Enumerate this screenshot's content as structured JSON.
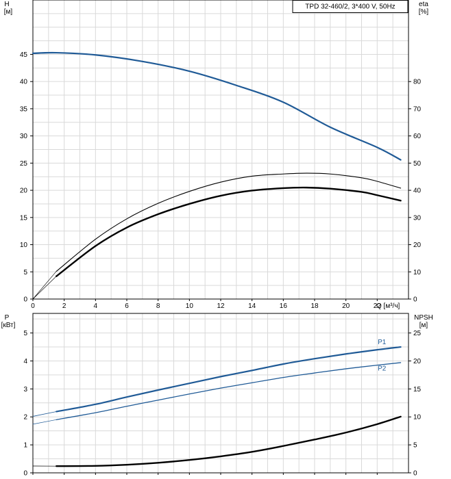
{
  "chart_data": [
    {
      "type": "line",
      "legend": "TPD 32-460/2, 3*400 V, 50Hz",
      "x_axis": {
        "label": "Q [м³/ч]",
        "ticks": [
          "0",
          "2",
          "4",
          "6",
          "8",
          "10",
          "12",
          "14",
          "16",
          "18",
          "20",
          "22"
        ],
        "range": [
          0,
          24
        ]
      },
      "y_left": {
        "label_line1": "H",
        "label_line2": "[м]",
        "ticks": [
          "0",
          "5",
          "10",
          "15",
          "20",
          "25",
          "30",
          "35",
          "40",
          "45"
        ],
        "range": [
          0,
          55
        ]
      },
      "y_right": {
        "label_line1": "eta",
        "label_line2": "[%]",
        "ticks": [
          "0",
          "10",
          "20",
          "30",
          "40",
          "50",
          "60",
          "70",
          "80"
        ],
        "range": [
          0,
          110
        ]
      },
      "grid": true,
      "series": [
        {
          "axis": "left",
          "color": "#1f5a96",
          "width": 2.2,
          "x": [
            0,
            1.5,
            4,
            7,
            10,
            13,
            16,
            19,
            22,
            23.5
          ],
          "y": [
            45.2,
            45.3,
            44.9,
            43.7,
            41.9,
            39.3,
            36.2,
            31.6,
            27.9,
            25.6
          ]
        },
        {
          "axis": "left",
          "color": "#1f5a96",
          "width": 0.8,
          "x": [
            0,
            1.5
          ],
          "y": [
            45.1,
            45.3
          ]
        },
        {
          "axis": "right",
          "color": "#000000",
          "width": 1.1,
          "x": [
            1.5,
            4,
            6,
            8,
            10,
            12,
            14,
            16,
            17.5,
            19,
            21,
            22,
            23.5
          ],
          "y": [
            10.2,
            22,
            29.5,
            35.2,
            39.6,
            43,
            45.2,
            46,
            46.3,
            46,
            44.6,
            43.3,
            40.8
          ]
        },
        {
          "axis": "right",
          "color": "#000000",
          "width": 0.6,
          "x": [
            0,
            1.5
          ],
          "y": [
            0,
            10.2
          ]
        },
        {
          "axis": "right",
          "color": "#000000",
          "width": 2.4,
          "x": [
            1.5,
            4,
            6,
            8,
            10,
            12,
            14,
            16,
            17.5,
            19,
            21,
            22,
            23.5
          ],
          "y": [
            8.4,
            19.5,
            26.3,
            31.2,
            35,
            38,
            39.9,
            40.8,
            41,
            40.6,
            39.4,
            38.2,
            36.2
          ]
        },
        {
          "axis": "right",
          "color": "#000000",
          "width": 0.6,
          "x": [
            0,
            1.5
          ],
          "y": [
            0,
            8.4
          ]
        }
      ]
    },
    {
      "type": "line",
      "x_axis": {
        "ticks": [
          "0",
          "2",
          "4",
          "6",
          "8",
          "10",
          "12",
          "14",
          "16",
          "18",
          "20",
          "22"
        ],
        "range": [
          0,
          24
        ]
      },
      "y_left": {
        "label_line1": "P",
        "label_line2": "[кВт]",
        "ticks": [
          "0",
          "1",
          "2",
          "3",
          "4",
          "5"
        ],
        "range": [
          0,
          5.7
        ]
      },
      "y_right": {
        "label_line1": "NPSH",
        "label_line2": "[м]",
        "ticks": [
          "0",
          "5",
          "10",
          "15",
          "20",
          "25"
        ],
        "range": [
          0,
          28.5
        ]
      },
      "grid": true,
      "series": [
        {
          "name": "P1",
          "axis": "left",
          "color": "#1f5a96",
          "width": 2.2,
          "x": [
            1.5,
            4,
            6,
            8,
            10,
            12,
            14,
            16,
            18,
            20,
            22,
            23.5
          ],
          "y": [
            2.19,
            2.45,
            2.71,
            2.96,
            3.2,
            3.44,
            3.66,
            3.89,
            4.08,
            4.25,
            4.4,
            4.5
          ],
          "label_at": [
            22.3,
            4.69
          ]
        },
        {
          "axis": "left",
          "color": "#1f5a96",
          "width": 0.8,
          "x": [
            0,
            1.5
          ],
          "y": [
            2.02,
            2.19
          ]
        },
        {
          "name": "P2",
          "axis": "left",
          "color": "#1f5a96",
          "width": 1.3,
          "x": [
            1.5,
            4,
            6,
            8,
            10,
            12,
            14,
            16,
            18,
            20,
            22,
            23.5
          ],
          "y": [
            1.9,
            2.15,
            2.38,
            2.6,
            2.82,
            3.03,
            3.22,
            3.41,
            3.57,
            3.72,
            3.85,
            3.94
          ],
          "label_at": [
            22.3,
            3.74
          ]
        },
        {
          "axis": "left",
          "color": "#1f5a96",
          "width": 0.7,
          "x": [
            0,
            1.5
          ],
          "y": [
            1.74,
            1.9
          ]
        },
        {
          "axis": "right",
          "color": "#000000",
          "width": 2.4,
          "x": [
            1.5,
            4,
            6,
            8,
            10,
            12,
            14,
            16,
            18,
            20,
            22,
            23.5
          ],
          "y": [
            1.2,
            1.25,
            1.45,
            1.8,
            2.3,
            2.95,
            3.75,
            4.8,
            5.95,
            7.2,
            8.7,
            10.05
          ]
        },
        {
          "axis": "right",
          "color": "#000000",
          "width": 0.7,
          "x": [
            0,
            1.5
          ],
          "y": [
            1.22,
            1.2
          ]
        }
      ]
    }
  ]
}
